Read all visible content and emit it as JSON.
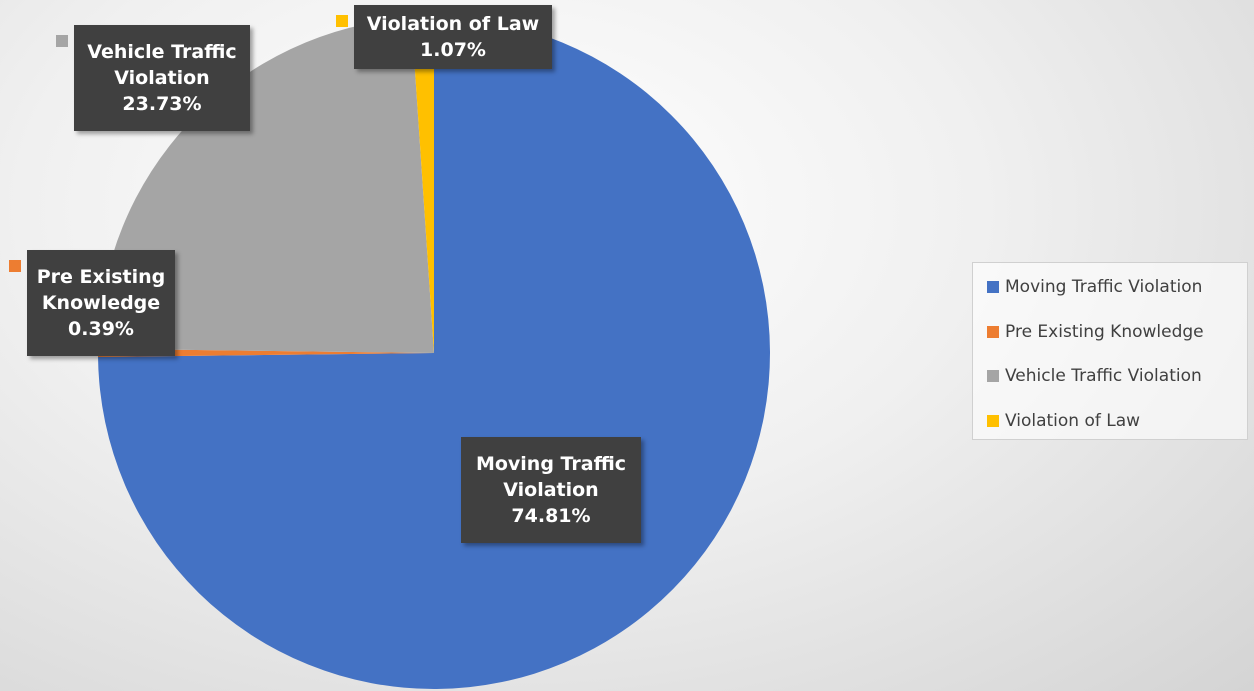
{
  "chart_data": {
    "type": "pie",
    "categories": [
      "Moving Traffic Violation",
      "Pre Existing Knowledge",
      "Vehicle Traffic Violation",
      "Violation of Law"
    ],
    "values": [
      74.81,
      0.39,
      23.73,
      1.07
    ],
    "value_labels": [
      "74.81%",
      "0.39%",
      "23.73%",
      "1.07%"
    ],
    "colors": [
      "#4472c4",
      "#ed7d31",
      "#a5a5a5",
      "#ffc000"
    ],
    "legend": "right"
  }
}
